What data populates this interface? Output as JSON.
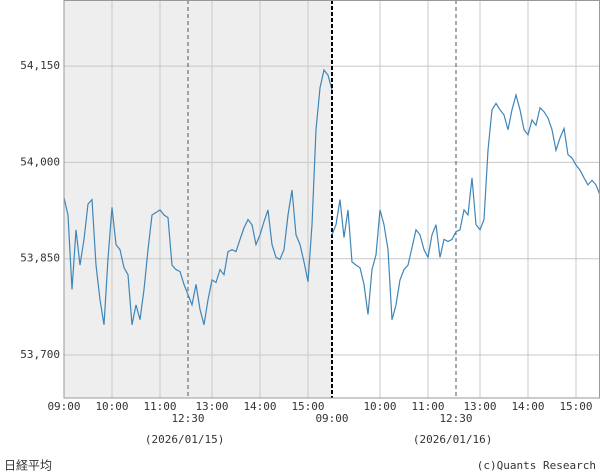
{
  "chart_data": {
    "type": "line",
    "color": "#3f86b8",
    "grid": true,
    "ylim": [
      53633,
      54253
    ],
    "yticks": [
      {
        "value": 53700,
        "label": "53,700"
      },
      {
        "value": 53850,
        "label": "53,850"
      },
      {
        "value": 54000,
        "label": "54,000"
      },
      {
        "value": 54150,
        "label": "54,150"
      }
    ],
    "days": [
      {
        "date": "(2026/01/15)",
        "background": "#eeeeee",
        "xticks": [
          "09:00",
          "10:00",
          "11:00",
          "13:00",
          "14:00",
          "15:00"
        ],
        "xticks_lower": [
          "12:30"
        ],
        "x": [
          "09:00",
          "09:05",
          "09:10",
          "09:15",
          "09:20",
          "09:25",
          "09:30",
          "09:35",
          "09:40",
          "09:45",
          "09:50",
          "09:55",
          "10:00",
          "10:05",
          "10:10",
          "10:15",
          "10:20",
          "10:25",
          "10:30",
          "10:35",
          "10:40",
          "10:45",
          "10:50",
          "10:55",
          "11:00",
          "11:05",
          "11:10",
          "11:15",
          "11:20",
          "11:25",
          "11:30",
          "12:30",
          "12:35",
          "12:40",
          "12:45",
          "12:50",
          "12:55",
          "13:00",
          "13:05",
          "13:10",
          "13:15",
          "13:20",
          "13:25",
          "13:30",
          "13:35",
          "13:40",
          "13:45",
          "13:50",
          "13:55",
          "14:00",
          "14:05",
          "14:10",
          "14:15",
          "14:20",
          "14:25",
          "14:30",
          "14:35",
          "14:40",
          "14:45",
          "14:50",
          "14:55",
          "15:00",
          "15:05",
          "15:10",
          "15:15",
          "15:20",
          "15:25",
          "15:30"
        ],
        "values": [
          53945,
          53918,
          53802,
          53895,
          53840,
          53880,
          53935,
          53942,
          53840,
          53786,
          53747,
          53850,
          53930,
          53872,
          53864,
          53836,
          53825,
          53747,
          53778,
          53755,
          53802,
          53864,
          53918,
          53922,
          53926,
          53918,
          53914,
          53840,
          53833,
          53830,
          53810,
          53794,
          53778,
          53810,
          53771,
          53747,
          53786,
          53817,
          53813,
          53833,
          53825,
          53861,
          53864,
          53861,
          53880,
          53898,
          53911,
          53903,
          53872,
          53887,
          53908,
          53926,
          53872,
          53852,
          53849,
          53864,
          53918,
          53957,
          53887,
          53872,
          53845,
          53814,
          53903,
          54051,
          54116,
          54144,
          54136,
          54113
        ]
      },
      {
        "date": "(2026/01/16)",
        "background": "#ffffff",
        "xticks": [
          "10:00",
          "11:00",
          "13:00",
          "14:00",
          "15:00"
        ],
        "xticks_lower": [
          "09:00",
          "12:30"
        ],
        "x": [
          "09:00",
          "09:05",
          "09:10",
          "09:15",
          "09:20",
          "09:25",
          "09:30",
          "09:35",
          "09:40",
          "09:45",
          "09:50",
          "09:55",
          "10:00",
          "10:05",
          "10:10",
          "10:15",
          "10:20",
          "10:25",
          "10:30",
          "10:35",
          "10:40",
          "10:45",
          "10:50",
          "10:55",
          "11:00",
          "11:05",
          "11:10",
          "11:15",
          "11:20",
          "11:25",
          "11:30",
          "12:30",
          "12:35",
          "12:40",
          "12:45",
          "12:50",
          "12:55",
          "13:00",
          "13:05",
          "13:10",
          "13:15",
          "13:20",
          "13:25",
          "13:30",
          "13:35",
          "13:40",
          "13:45",
          "13:50",
          "13:55",
          "14:00",
          "14:05",
          "14:10",
          "14:15",
          "14:20",
          "14:25",
          "14:30",
          "14:35",
          "14:40",
          "14:45",
          "14:50",
          "14:55",
          "15:00",
          "15:05",
          "15:10",
          "15:15",
          "15:20",
          "15:25",
          "15:30"
        ],
        "values": [
          53887,
          53903,
          53942,
          53883,
          53926,
          53845,
          53840,
          53836,
          53810,
          53763,
          53833,
          53856,
          53926,
          53903,
          53864,
          53755,
          53778,
          53817,
          53833,
          53840,
          53867,
          53895,
          53887,
          53864,
          53852,
          53887,
          53903,
          53852,
          53880,
          53877,
          53880,
          53892,
          53895,
          53926,
          53918,
          53976,
          53903,
          53895,
          53911,
          54019,
          54082,
          54092,
          54082,
          54074,
          54051,
          54082,
          54105,
          54082,
          54051,
          54043,
          54066,
          54058,
          54085,
          54079,
          54069,
          54051,
          54019,
          54038,
          54053,
          54012,
          54007,
          53996,
          53988,
          53976,
          53965,
          53972,
          53965,
          53949
        ]
      }
    ]
  },
  "footer": {
    "left": "日経平均",
    "right": "(c)Quants Research"
  }
}
